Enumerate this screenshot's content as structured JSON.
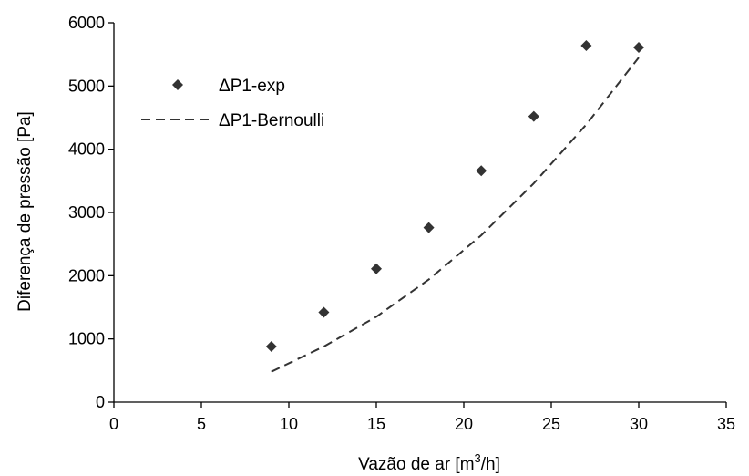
{
  "chart_data": {
    "type": "scatter",
    "xlabel": "Vazão de ar [m",
    "xlabel_sup": "3",
    "xlabel_tail": "/h]",
    "ylabel": "Diferença de pressão [Pa]",
    "xlim": [
      0,
      35
    ],
    "ylim": [
      0,
      6000
    ],
    "xticks": [
      0,
      5,
      10,
      15,
      20,
      25,
      30,
      35
    ],
    "yticks": [
      0,
      1000,
      2000,
      3000,
      4000,
      5000,
      6000
    ],
    "grid": false,
    "legend_position": "top-left",
    "series": [
      {
        "name": "ΔP1-exp",
        "style": "markers",
        "marker": "diamond",
        "color": "#333333",
        "x": [
          9,
          12,
          15,
          18,
          21,
          24,
          27,
          30
        ],
        "y": [
          880,
          1420,
          2110,
          2760,
          3660,
          4520,
          5640,
          5610
        ]
      },
      {
        "name": "ΔP1-Bernoulli",
        "style": "dashed-line",
        "color": "#333333",
        "x": [
          9,
          12,
          15,
          18,
          21,
          24,
          27,
          30
        ],
        "y": [
          480,
          880,
          1350,
          1940,
          2640,
          3460,
          4390,
          5450
        ]
      }
    ]
  }
}
